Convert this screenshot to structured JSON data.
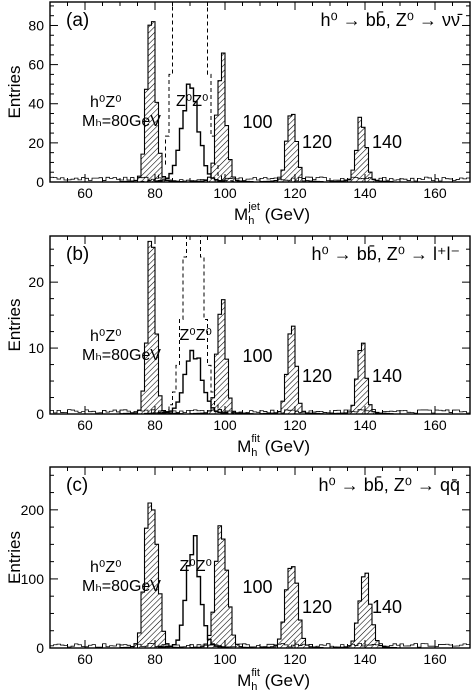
{
  "chart_data": [
    {
      "type": "bar",
      "panel_label": "(a)",
      "process": "h⁰ → bb̄, Z⁰ → νν̄",
      "xlabel": "M_h^jet (GeV)",
      "xlabel_main": "M",
      "xlabel_sub": "h",
      "xlabel_sup": "jet",
      "xlabel_unit": " (GeV)",
      "ylabel": "Entries",
      "xlim": [
        50,
        170
      ],
      "ylim": [
        0,
        92
      ],
      "xticks": [
        60,
        80,
        100,
        120,
        140,
        160
      ],
      "yticks": [
        0,
        20,
        40,
        60,
        80
      ],
      "labels": {
        "hz": "h⁰Z⁰",
        "mh": "Mₕ=80GeV",
        "zz": "Z⁰Z⁰",
        "m100": "100",
        "m120": "120",
        "m140": "140"
      },
      "zz_peak": 90,
      "zz_height": 46,
      "zz_width": 2.4,
      "dashed_peak": 90,
      "dashed_height": 500,
      "dashed_width": 2.6,
      "signal_peaks": [
        {
          "mass": 79,
          "height": 85
        },
        {
          "mass": 99,
          "height": 63
        },
        {
          "mass": 119,
          "height": 39
        },
        {
          "mass": 139,
          "height": 31
        }
      ],
      "sig_width": 1.3,
      "background_level": 1.5
    },
    {
      "type": "bar",
      "panel_label": "(b)",
      "process": "h⁰ → bb̄, Z⁰ → l⁺l⁻",
      "xlabel": "M_h^fit (GeV)",
      "xlabel_main": "M",
      "xlabel_sub": "h",
      "xlabel_sup": "fit",
      "xlabel_unit": " (GeV)",
      "ylabel": "Entries",
      "xlim": [
        50,
        170
      ],
      "ylim": [
        0,
        27
      ],
      "xticks": [
        60,
        80,
        100,
        120,
        140,
        160
      ],
      "yticks": [
        0,
        10,
        20
      ],
      "labels": {
        "hz": "h⁰Z⁰",
        "mh": "Mₕ=80GeV",
        "zz": "Z⁰Z⁰",
        "m100": "100",
        "m120": "120",
        "m140": "140"
      },
      "zz_peak": 91,
      "zz_height": 9,
      "zz_width": 2.4,
      "dashed_peak": 91,
      "dashed_height": 40,
      "dashed_width": 2.4,
      "signal_peaks": [
        {
          "mass": 79,
          "height": 25
        },
        {
          "mass": 99,
          "height": 18
        },
        {
          "mass": 119,
          "height": 14
        },
        {
          "mass": 139,
          "height": 10
        }
      ],
      "sig_width": 1.2,
      "background_level": 0.4
    },
    {
      "type": "bar",
      "panel_label": "(c)",
      "process": "h⁰ → bb̄, Z⁰ → qq̄",
      "xlabel": "M_h^fit (GeV)",
      "xlabel_main": "M",
      "xlabel_sub": "h",
      "xlabel_sup": "fit",
      "xlabel_unit": " (GeV)",
      "ylabel": "Entries",
      "xlim": [
        50,
        170
      ],
      "ylim": [
        0,
        262
      ],
      "xticks": [
        60,
        80,
        100,
        120,
        140,
        160
      ],
      "yticks": [
        0,
        100,
        200
      ],
      "labels": {
        "hz": "h⁰Z⁰",
        "mh": "Mₕ=80GeV",
        "zz": "Z⁰Z⁰",
        "m100": "100",
        "m120": "120",
        "m140": "140"
      },
      "zz_peak": 91,
      "zz_height": 150,
      "zz_width": 1.9,
      "dashed_peak": 91,
      "dashed_height": 0,
      "dashed_width": 2.0,
      "signal_peaks": [
        {
          "mass": 79,
          "height": 235
        },
        {
          "mass": 99,
          "height": 190
        },
        {
          "mass": 119,
          "height": 135
        },
        {
          "mass": 140,
          "height": 102
        }
      ],
      "sig_width": 1.6,
      "background_level": 4
    }
  ]
}
